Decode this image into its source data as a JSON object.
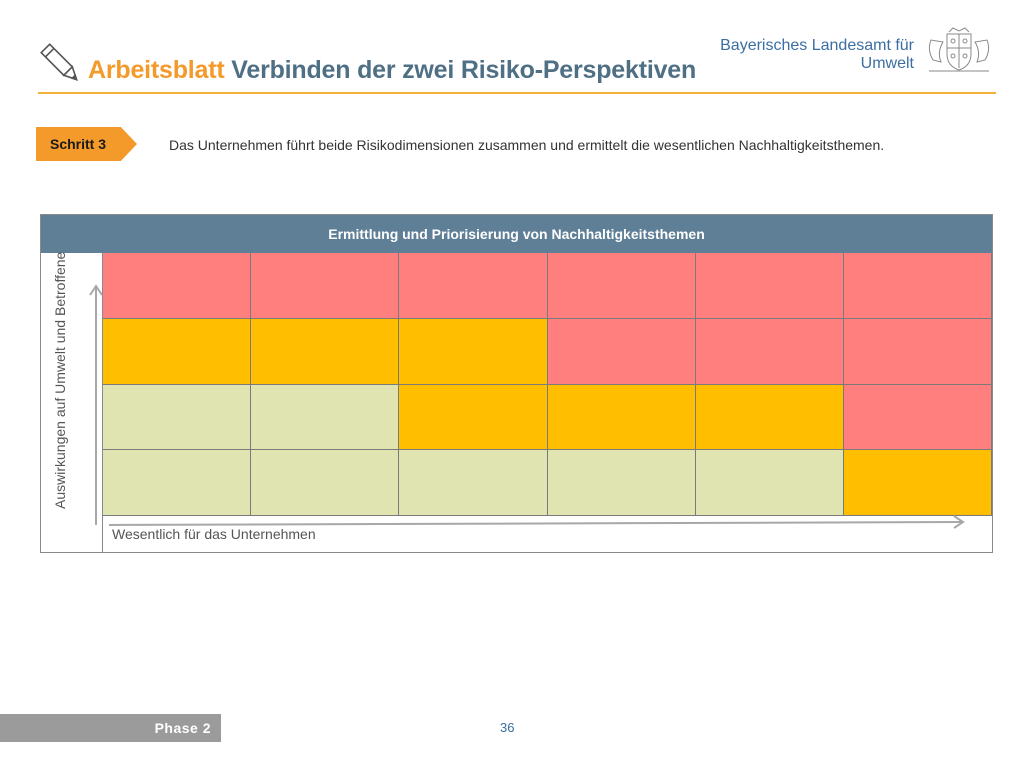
{
  "header": {
    "title_part1": "Arbeitsblatt",
    "title_part2": "Verbinden der zwei Risiko-Perspektiven",
    "org_line1": "Bayerisches Landesamt für",
    "org_line2": "Umwelt",
    "icon": "pencil-icon",
    "logo": "coat-of-arms-logo",
    "accent_color": "#f39a2b",
    "title_color": "#4f6f85"
  },
  "step": {
    "label": "Schritt 3",
    "description": "Das Unternehmen führt beide Risikodimensionen zusammen und ermittelt die wesentlichen Nachhaltigkeitsthemen."
  },
  "matrix": {
    "header": "Ermittlung und Priorisierung von Nachhaltigkeitsthemen",
    "y_axis_label": "Auswirkungen auf Umwelt und Betroffene",
    "x_axis_label": "Wesentlich für das Unternehmen",
    "rows": [
      [
        "red",
        "red",
        "red",
        "red",
        "red",
        "red"
      ],
      [
        "orange",
        "orange",
        "orange",
        "red",
        "red",
        "red"
      ],
      [
        "green",
        "green",
        "orange",
        "orange",
        "orange",
        "red"
      ],
      [
        "green",
        "green",
        "green",
        "green",
        "green",
        "orange"
      ]
    ],
    "colors": {
      "red": "#ff7f7f",
      "orange": "#ffbf00",
      "green": "#e0e4b0",
      "header": "#5f7f97"
    }
  },
  "footer": {
    "phase_label": "Phase 2",
    "page_number": "36"
  }
}
